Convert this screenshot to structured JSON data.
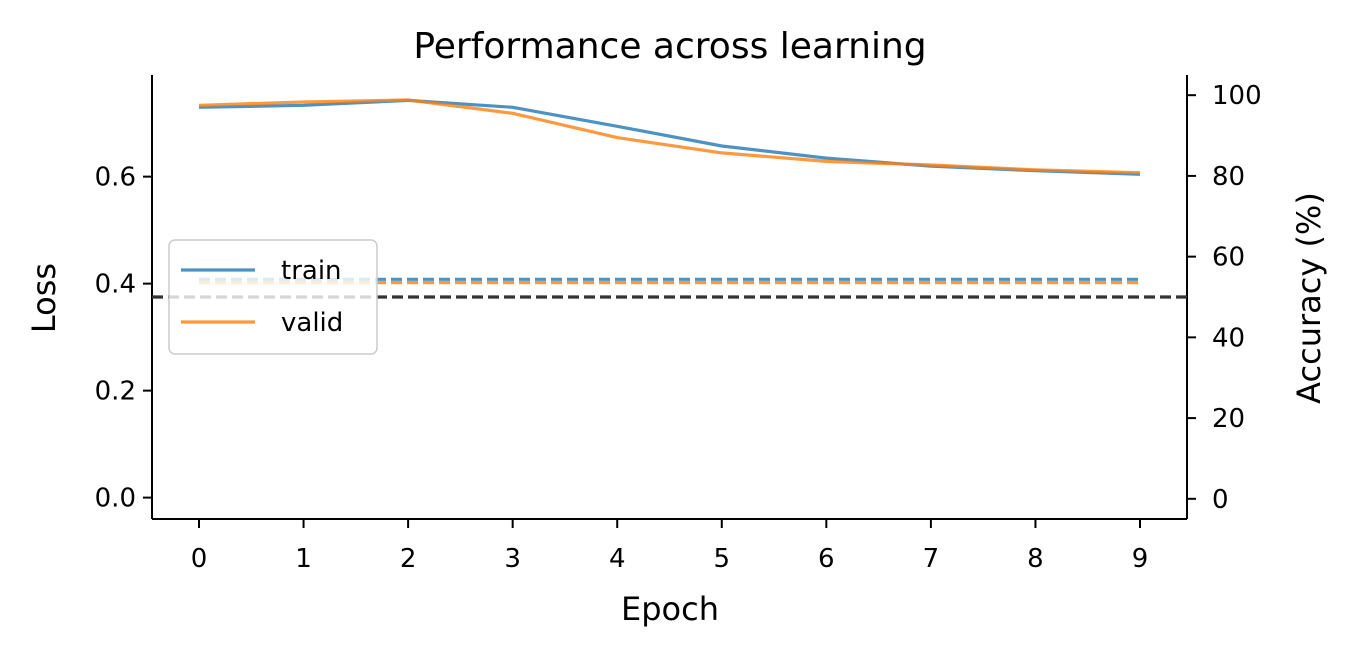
{
  "chart_data": {
    "type": "line",
    "title": "Performance across learning",
    "xlabel": "Epoch",
    "ylabel": "Loss",
    "ylabel_right": "Accuracy (%)",
    "x": [
      0,
      1,
      2,
      3,
      4,
      5,
      6,
      7,
      8,
      9
    ],
    "xticks": [
      "0",
      "1",
      "2",
      "3",
      "4",
      "5",
      "6",
      "7",
      "8",
      "9"
    ],
    "ylim": [
      -0.04,
      0.79
    ],
    "yticks": [
      "0.0",
      "0.2",
      "0.4",
      "0.6"
    ],
    "ylim_right": [
      -5,
      105
    ],
    "yticks_right": [
      "0",
      "20",
      "40",
      "60",
      "80",
      "100"
    ],
    "series": [
      {
        "name": "train",
        "axis": "left",
        "color": "#1f77b4",
        "style": "dashed",
        "values": [
          0.408,
          0.408,
          0.408,
          0.408,
          0.408,
          0.408,
          0.408,
          0.408,
          0.408,
          0.408
        ]
      },
      {
        "name": "valid",
        "axis": "left",
        "color": "#ff7f0e",
        "style": "dashed",
        "values": [
          0.402,
          0.402,
          0.402,
          0.402,
          0.402,
          0.402,
          0.402,
          0.402,
          0.402,
          0.402
        ]
      },
      {
        "axis": "right",
        "color": "#1f77b4",
        "style": "solid",
        "values": [
          97.0,
          97.5,
          98.7,
          97.0,
          92.3,
          87.4,
          84.4,
          82.4,
          81.3,
          80.4
        ]
      },
      {
        "axis": "right",
        "color": "#ff7f0e",
        "style": "solid",
        "values": [
          97.5,
          98.3,
          98.8,
          95.5,
          89.5,
          85.7,
          83.6,
          82.7,
          81.5,
          80.8
        ]
      }
    ],
    "reference_line": {
      "axis": "right",
      "value": 50,
      "color": "#333333",
      "style": "dashed"
    },
    "legend": {
      "position": "center-left",
      "entries": [
        "train",
        "valid"
      ]
    },
    "grid": false
  }
}
